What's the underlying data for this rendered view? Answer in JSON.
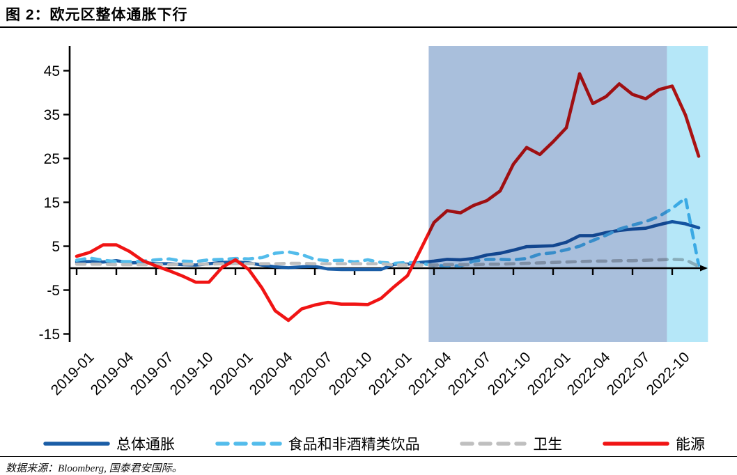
{
  "title": "图 2：欧元区整体通胀下行",
  "source": "数据来源：Bloomberg, 国泰君安国际。",
  "colors": {
    "headline_blue": "#1A5DA6",
    "food_lightblue": "#53BCEB",
    "health_gray": "#BFBFBF",
    "energy_red": "#F01414",
    "highlight_slate": "#A9BFDC",
    "highlight_cyan": "#B5E7F8",
    "axis_black": "#000000"
  },
  "chart_data": {
    "type": "line",
    "title": "欧元区整体通胀下行",
    "xlabel": "",
    "ylabel": "",
    "ylim": [
      -15,
      45
    ],
    "yticks": [
      45,
      35,
      25,
      15,
      5,
      -5,
      -15
    ],
    "grid": false,
    "legend_position": "bottom",
    "x": [
      "2019-01",
      "2019-02",
      "2019-03",
      "2019-04",
      "2019-05",
      "2019-06",
      "2019-07",
      "2019-08",
      "2019-09",
      "2019-10",
      "2019-11",
      "2019-12",
      "2020-01",
      "2020-02",
      "2020-03",
      "2020-04",
      "2020-05",
      "2020-06",
      "2020-07",
      "2020-08",
      "2020-09",
      "2020-10",
      "2020-11",
      "2020-12",
      "2021-01",
      "2021-02",
      "2021-03",
      "2021-04",
      "2021-05",
      "2021-06",
      "2021-07",
      "2021-08",
      "2021-09",
      "2021-10",
      "2021-11",
      "2021-12",
      "2022-01",
      "2022-02",
      "2022-03",
      "2022-04",
      "2022-05",
      "2022-06",
      "2022-07",
      "2022-08",
      "2022-09",
      "2022-10",
      "2022-11",
      "2022-12"
    ],
    "x_tick_labels": [
      "2019-01",
      "2019-04",
      "2019-07",
      "2019-10",
      "2020-01",
      "2020-04",
      "2020-07",
      "2020-10",
      "2021-01",
      "2021-04",
      "2021-07",
      "2021-10",
      "2022-01",
      "2022-04",
      "2022-07",
      "2022-10"
    ],
    "series": [
      {
        "name": "总体通胀",
        "style": "solid",
        "color": "#1A5DA6",
        "values": [
          1.4,
          1.5,
          1.4,
          1.7,
          1.2,
          1.3,
          1.0,
          1.0,
          0.8,
          0.7,
          1.0,
          1.3,
          1.4,
          1.2,
          0.7,
          0.3,
          0.1,
          0.3,
          0.4,
          -0.2,
          -0.3,
          -0.3,
          -0.3,
          -0.3,
          0.9,
          0.9,
          1.3,
          1.6,
          2.0,
          1.9,
          2.2,
          3.0,
          3.4,
          4.1,
          4.9,
          5.0,
          5.1,
          5.9,
          7.4,
          7.4,
          8.1,
          8.6,
          8.9,
          9.1,
          9.9,
          10.6,
          10.1,
          9.2
        ]
      },
      {
        "name": "食品和非酒精类饮品",
        "style": "dashed",
        "color": "#53BCEB",
        "values": [
          1.8,
          2.3,
          1.8,
          1.5,
          1.5,
          1.6,
          1.9,
          2.1,
          1.6,
          1.5,
          1.9,
          2.0,
          2.2,
          2.1,
          2.4,
          3.4,
          3.7,
          3.1,
          2.0,
          1.7,
          1.8,
          1.4,
          1.9,
          1.3,
          1.1,
          1.3,
          1.1,
          0.6,
          0.5,
          0.5,
          1.6,
          2.0,
          2.0,
          1.9,
          2.2,
          3.2,
          3.5,
          4.2,
          5.0,
          6.3,
          7.5,
          8.9,
          9.8,
          10.6,
          11.8,
          13.6,
          16.0,
          0.7
        ]
      },
      {
        "name": "卫生",
        "style": "dashed",
        "color": "#BFBFBF",
        "values": [
          0.9,
          0.9,
          0.9,
          0.8,
          0.8,
          0.8,
          0.8,
          0.8,
          0.9,
          0.9,
          0.9,
          1.0,
          1.0,
          1.0,
          1.0,
          1.0,
          1.1,
          1.1,
          1.0,
          1.0,
          1.0,
          1.0,
          1.0,
          1.0,
          0.7,
          0.7,
          0.7,
          0.7,
          0.8,
          0.8,
          0.8,
          0.9,
          0.9,
          1.0,
          1.1,
          1.2,
          1.3,
          1.4,
          1.5,
          1.6,
          1.6,
          1.7,
          1.7,
          1.8,
          1.9,
          2.0,
          1.9,
          0.4
        ]
      },
      {
        "name": "能源",
        "style": "solid",
        "color": "#F01414",
        "values": [
          2.7,
          3.6,
          5.3,
          5.3,
          3.8,
          1.7,
          0.5,
          -0.6,
          -1.8,
          -3.2,
          -3.2,
          0.2,
          1.9,
          -0.3,
          -4.5,
          -9.7,
          -11.9,
          -9.3,
          -8.4,
          -7.8,
          -8.2,
          -8.2,
          -8.3,
          -6.9,
          -4.2,
          -1.7,
          4.3,
          10.4,
          13.1,
          12.6,
          14.3,
          15.4,
          17.6,
          23.7,
          27.5,
          25.9,
          28.8,
          32.0,
          44.3,
          37.5,
          39.1,
          42.0,
          39.6,
          38.6,
          40.7,
          41.5,
          34.9,
          25.5
        ]
      }
    ],
    "highlight_regions": [
      {
        "from": "2021-04",
        "to": "2022-10",
        "to_inclusive": false,
        "color": "#A9BFDC"
      },
      {
        "from": "2022-10",
        "to": "2022-12",
        "to_inclusive": true,
        "color": "#B5E7F8"
      }
    ]
  }
}
